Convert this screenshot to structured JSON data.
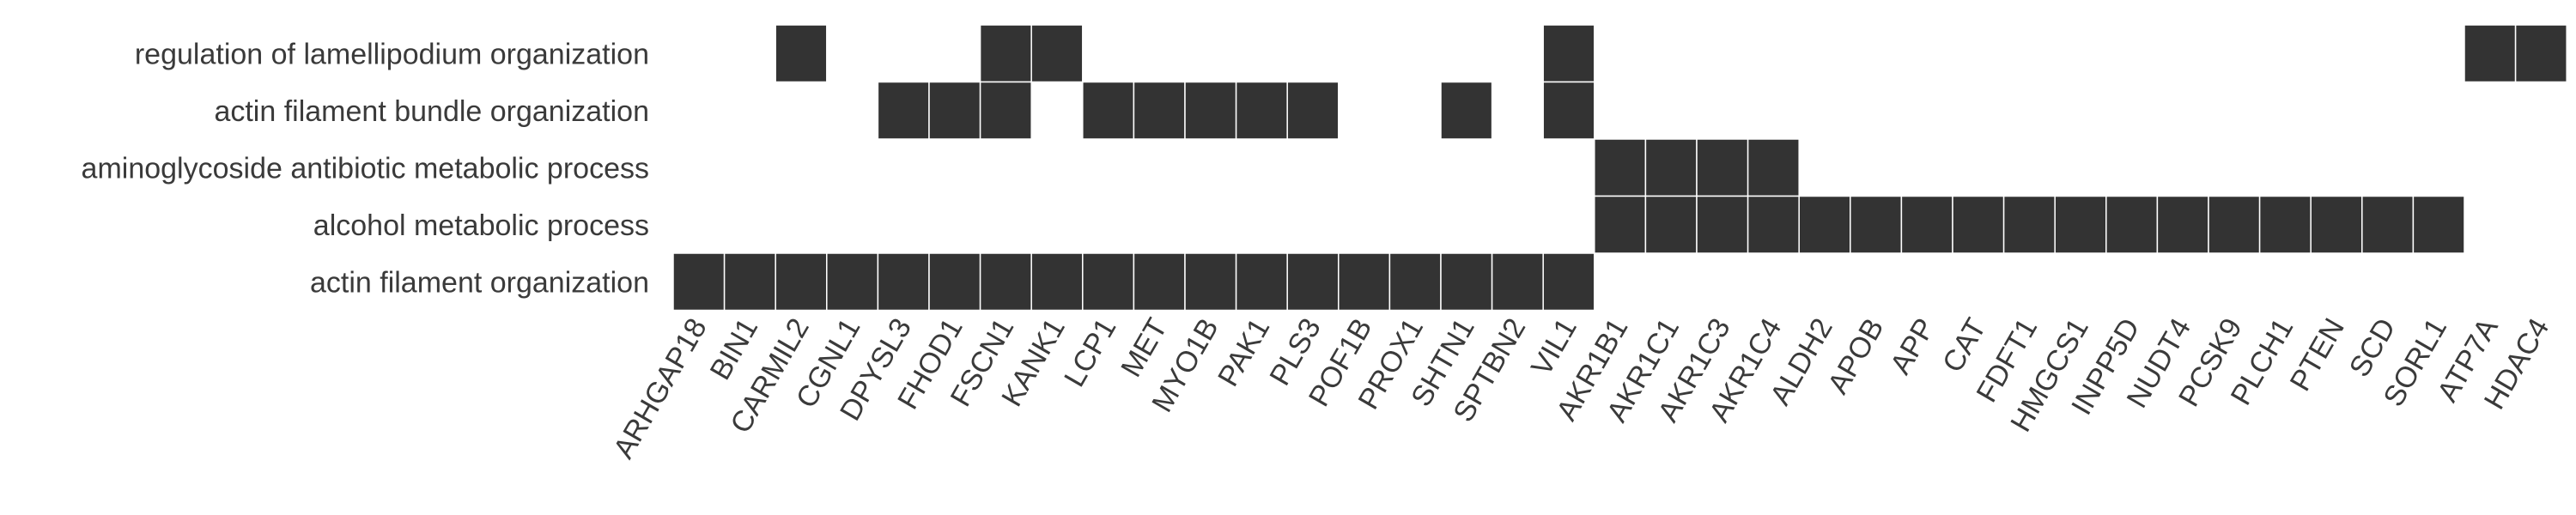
{
  "chart_data": {
    "type": "heatmap",
    "rows": [
      "regulation of lamellipodium organization",
      "actin filament bundle organization",
      "aminoglycoside antibiotic metabolic process",
      "alcohol metabolic process",
      "actin filament organization"
    ],
    "columns": [
      "ARHGAP18",
      "BIN1",
      "CARMIL2",
      "CGNL1",
      "DPYSL3",
      "FHOD1",
      "FSCN1",
      "KANK1",
      "LCP1",
      "MET",
      "MYO1B",
      "PAK1",
      "PLS3",
      "POF1B",
      "PROX1",
      "SHTN1",
      "SPTBN2",
      "VIL1",
      "AKR1B1",
      "AKR1C1",
      "AKR1C3",
      "AKR1C4",
      "ALDH2",
      "APOB",
      "APP",
      "CAT",
      "FDFT1",
      "HMGCS1",
      "INPP5D",
      "NUDT4",
      "PCSK9",
      "PLCH1",
      "PTEN",
      "SCD",
      "SORL1",
      "ATP7A",
      "HDAC4"
    ],
    "values": [
      [
        0,
        0,
        1,
        0,
        0,
        0,
        1,
        1,
        0,
        0,
        0,
        0,
        0,
        0,
        0,
        0,
        0,
        1,
        0,
        0,
        0,
        0,
        0,
        0,
        0,
        0,
        0,
        0,
        0,
        0,
        0,
        0,
        0,
        0,
        0,
        1,
        1
      ],
      [
        0,
        0,
        0,
        0,
        1,
        1,
        1,
        0,
        1,
        1,
        1,
        1,
        1,
        0,
        0,
        1,
        0,
        1,
        0,
        0,
        0,
        0,
        0,
        0,
        0,
        0,
        0,
        0,
        0,
        0,
        0,
        0,
        0,
        0,
        0,
        0,
        0
      ],
      [
        0,
        0,
        0,
        0,
        0,
        0,
        0,
        0,
        0,
        0,
        0,
        0,
        0,
        0,
        0,
        0,
        0,
        0,
        1,
        1,
        1,
        1,
        0,
        0,
        0,
        0,
        0,
        0,
        0,
        0,
        0,
        0,
        0,
        0,
        0,
        0,
        0
      ],
      [
        0,
        0,
        0,
        0,
        0,
        0,
        0,
        0,
        0,
        0,
        0,
        0,
        0,
        0,
        0,
        0,
        0,
        0,
        1,
        1,
        1,
        1,
        1,
        1,
        1,
        1,
        1,
        1,
        1,
        1,
        1,
        1,
        1,
        1,
        1,
        0,
        0
      ],
      [
        1,
        1,
        1,
        1,
        1,
        1,
        1,
        1,
        1,
        1,
        1,
        1,
        1,
        1,
        1,
        1,
        1,
        1,
        0,
        0,
        0,
        0,
        0,
        0,
        0,
        0,
        0,
        0,
        0,
        0,
        0,
        0,
        0,
        0,
        0,
        0,
        0
      ]
    ],
    "colors": {
      "filled": "#333333",
      "empty": "#ffffff",
      "gridline": "#ffffff",
      "text": "#3a3a3a"
    },
    "legend": "none",
    "grid": false
  }
}
